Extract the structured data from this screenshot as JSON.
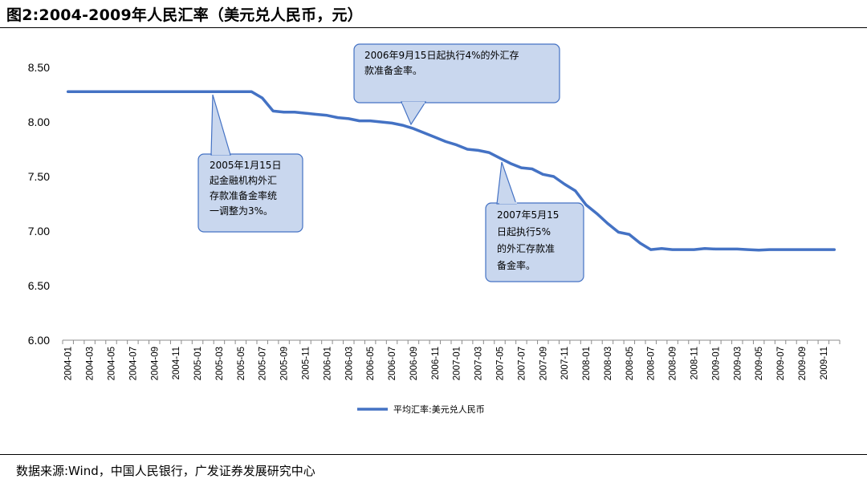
{
  "title": "图2:2004-2009年人民汇率（美元兑人民币，元）",
  "source": "数据来源:Wind，中国人民银行，广发证券发展研究中心",
  "chart_data": {
    "type": "line",
    "title": "图2:2004-2009年人民汇率（美元兑人民币，元）",
    "ylim": [
      6.0,
      8.5
    ],
    "yticks": [
      "8.50",
      "8.00",
      "7.50",
      "7.00",
      "6.50",
      "6.00"
    ],
    "grid": false,
    "legend_position": "bottom-center",
    "x_labels": [
      "2004-01",
      "2004-03",
      "2004-05",
      "2004-07",
      "2004-09",
      "2004-11",
      "2005-01",
      "2005-03",
      "2005-05",
      "2005-07",
      "2005-09",
      "2005-11",
      "2006-01",
      "2006-03",
      "2006-05",
      "2006-07",
      "2006-09",
      "2006-11",
      "2007-01",
      "2007-03",
      "2007-05",
      "2007-07",
      "2007-09",
      "2007-11",
      "2008-01",
      "2008-03",
      "2008-05",
      "2008-07",
      "2008-09",
      "2008-11",
      "2009-01",
      "2009-03",
      "2009-05",
      "2009-07",
      "2009-09",
      "2009-11"
    ],
    "x": [
      "2004-01",
      "2004-02",
      "2004-03",
      "2004-04",
      "2004-05",
      "2004-06",
      "2004-07",
      "2004-08",
      "2004-09",
      "2004-10",
      "2004-11",
      "2004-12",
      "2005-01",
      "2005-02",
      "2005-03",
      "2005-04",
      "2005-05",
      "2005-06",
      "2005-07",
      "2005-08",
      "2005-09",
      "2005-10",
      "2005-11",
      "2005-12",
      "2006-01",
      "2006-02",
      "2006-03",
      "2006-04",
      "2006-05",
      "2006-06",
      "2006-07",
      "2006-08",
      "2006-09",
      "2006-10",
      "2006-11",
      "2006-12",
      "2007-01",
      "2007-02",
      "2007-03",
      "2007-04",
      "2007-05",
      "2007-06",
      "2007-07",
      "2007-08",
      "2007-09",
      "2007-10",
      "2007-11",
      "2007-12",
      "2008-01",
      "2008-02",
      "2008-03",
      "2008-04",
      "2008-05",
      "2008-06",
      "2008-07",
      "2008-08",
      "2008-09",
      "2008-10",
      "2008-11",
      "2008-12",
      "2009-01",
      "2009-02",
      "2009-03",
      "2009-04",
      "2009-05",
      "2009-06",
      "2009-07",
      "2009-08",
      "2009-09",
      "2009-10",
      "2009-11",
      "2009-12"
    ],
    "series": [
      {
        "name": "平均汇率:美元兑人民币",
        "color": "#4472c4",
        "values": [
          8.277,
          8.277,
          8.277,
          8.277,
          8.277,
          8.277,
          8.277,
          8.277,
          8.277,
          8.277,
          8.277,
          8.277,
          8.277,
          8.277,
          8.277,
          8.277,
          8.277,
          8.277,
          8.22,
          8.1,
          8.09,
          8.09,
          8.08,
          8.07,
          8.06,
          8.04,
          8.03,
          8.01,
          8.01,
          8.0,
          7.99,
          7.97,
          7.94,
          7.9,
          7.86,
          7.82,
          7.79,
          7.75,
          7.74,
          7.72,
          7.67,
          7.62,
          7.58,
          7.57,
          7.52,
          7.5,
          7.43,
          7.37,
          7.24,
          7.16,
          7.07,
          6.99,
          6.97,
          6.89,
          6.83,
          6.84,
          6.83,
          6.83,
          6.83,
          6.84,
          6.835,
          6.835,
          6.835,
          6.83,
          6.825,
          6.83,
          6.83,
          6.83,
          6.83,
          6.83,
          6.83,
          6.83
        ]
      }
    ],
    "annotations": [
      {
        "lines": [
          "2005年1月15日",
          "起金融机构外汇",
          "存款准备金率统",
          "一调整为3%。"
        ]
      },
      {
        "lines": [
          "2006年9月15日起执行4%的外汇存",
          "款准备金率。"
        ]
      },
      {
        "lines": [
          "2007年5月15",
          "日起执行5%",
          "的外汇存款准",
          "备金率。"
        ]
      }
    ]
  }
}
